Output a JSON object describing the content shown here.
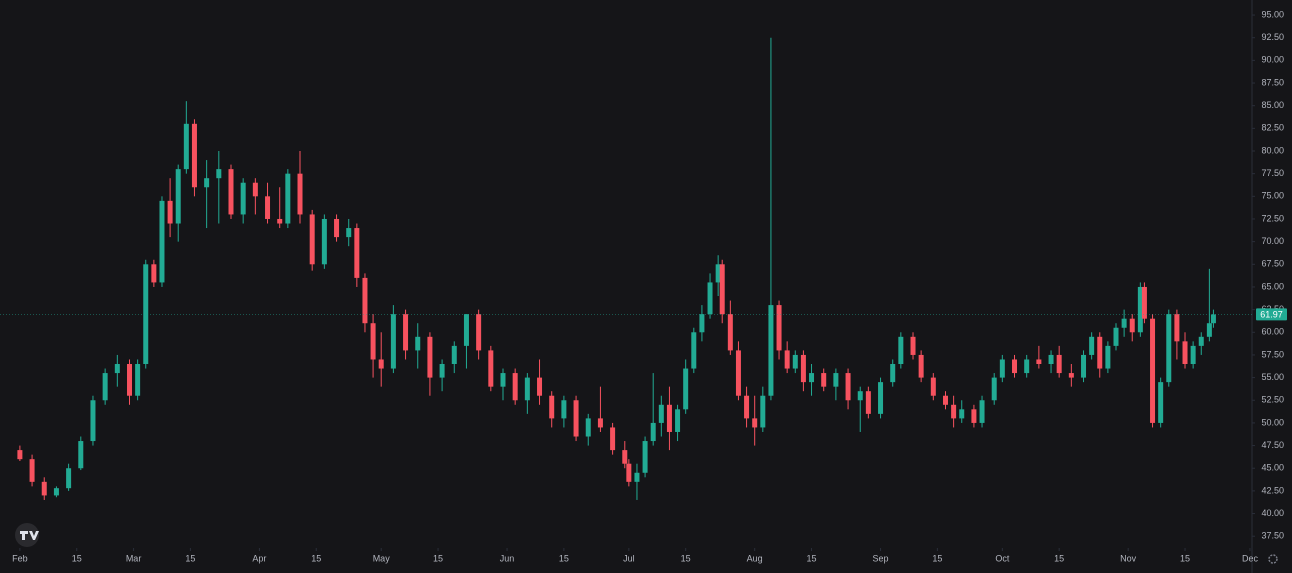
{
  "chart_data": {
    "type": "candlestick",
    "x": [
      0,
      3,
      6,
      9,
      12,
      15,
      18,
      21,
      24,
      27,
      29,
      31,
      33,
      35,
      37,
      39,
      41,
      43,
      46,
      49,
      52,
      55,
      58,
      61,
      64,
      66,
      69,
      72,
      75,
      78,
      81,
      83,
      85,
      87,
      89,
      92,
      95,
      98,
      101,
      104,
      107,
      110,
      113,
      116,
      119,
      122,
      125,
      128,
      131,
      134,
      137,
      140,
      143,
      146,
      149,
      150,
      152,
      154,
      156,
      158,
      160,
      162,
      164,
      166,
      168,
      170,
      172,
      173,
      175,
      177,
      179,
      181,
      183,
      185,
      187,
      189,
      191,
      193,
      195,
      198,
      201,
      204,
      207,
      209,
      212,
      215,
      217,
      220,
      222,
      225,
      228,
      230,
      232,
      235,
      237,
      240,
      242,
      245,
      248,
      251,
      254,
      256,
      259,
      262,
      264,
      266,
      268,
      270,
      272,
      274,
      276,
      277,
      279,
      281,
      283,
      285,
      287,
      289,
      291,
      293,
      294
    ],
    "open": [
      47,
      46,
      43.5,
      42,
      42.8,
      45,
      48,
      52.5,
      55.5,
      56.5,
      53,
      56.5,
      67.5,
      65.5,
      74.5,
      72,
      78,
      83,
      76,
      77,
      78,
      73,
      76.5,
      75,
      72.5,
      72,
      77.5,
      73,
      67.5,
      72.5,
      70.5,
      71.5,
      66,
      61,
      57,
      56,
      62,
      58,
      59.5,
      55,
      56.5,
      58.5,
      62,
      58,
      54,
      55.5,
      52.5,
      55,
      53,
      50.5,
      52.5,
      48.5,
      50.5,
      49.5,
      47,
      45.5,
      43.5,
      44.5,
      48,
      50,
      52,
      49,
      51.5,
      56,
      60,
      62,
      65.5,
      67.5,
      62,
      58,
      53,
      50.5,
      49.5,
      53,
      63,
      58,
      56,
      57.5,
      54.5,
      55.5,
      54,
      55.5,
      52.5,
      53.5,
      51,
      54.5,
      56.5,
      59.5,
      57.5,
      55,
      53,
      52,
      50.5,
      51.5,
      50,
      52.5,
      55,
      57,
      55.5,
      57,
      56.5,
      57.5,
      55.5,
      55,
      57.5,
      59.5,
      56,
      58.5,
      60.5,
      61.5,
      60,
      65,
      61.5,
      50,
      54.5,
      62,
      59,
      56.5,
      58.5,
      59.5,
      61
    ],
    "high": [
      47.5,
      46.5,
      44,
      43,
      45.5,
      48.5,
      53,
      56,
      57.5,
      57,
      57,
      68,
      68,
      75,
      77,
      78.5,
      85.5,
      83.5,
      79,
      80,
      78.5,
      77,
      77,
      76.5,
      76,
      78,
      80,
      73.5,
      73,
      73,
      72.5,
      72,
      66.5,
      62,
      60,
      63,
      62.5,
      61,
      60,
      57,
      59,
      62,
      62.5,
      58.5,
      56,
      56,
      55.5,
      57,
      53.5,
      53,
      53,
      51,
      54,
      50,
      48,
      46,
      45.5,
      48.5,
      55.5,
      53,
      54,
      52,
      57,
      60.5,
      63,
      66.5,
      68.5,
      68,
      63.5,
      59,
      54,
      53,
      54,
      92.5,
      63.5,
      59,
      58,
      58,
      56.5,
      56,
      56,
      56,
      54,
      54,
      55,
      57,
      60,
      60,
      58,
      55.5,
      53.5,
      53,
      52.5,
      52,
      53,
      55.5,
      57.5,
      57.5,
      57.5,
      58.5,
      58,
      58.5,
      56.5,
      58,
      60,
      60,
      59,
      61,
      62.5,
      62,
      65.5,
      65.5,
      62,
      55,
      62.5,
      62.5,
      60,
      59,
      60,
      67,
      62.5
    ],
    "low": [
      45.8,
      43,
      41.5,
      41.8,
      42.5,
      44.8,
      47.5,
      52,
      54,
      52,
      52.5,
      56,
      65,
      65,
      70.5,
      70,
      77.5,
      75,
      71.5,
      72,
      72.5,
      72,
      73,
      72,
      71.5,
      71.5,
      72,
      66.8,
      67,
      70,
      69.5,
      65,
      60,
      55,
      54,
      55.5,
      57,
      56,
      53,
      53.5,
      55.5,
      56,
      57,
      53.5,
      52.5,
      52,
      51,
      52,
      49.5,
      49.5,
      48,
      47.5,
      49,
      46.5,
      45,
      43,
      41.5,
      44,
      47.5,
      48.5,
      47,
      48,
      51,
      55.5,
      59,
      61.5,
      64,
      61,
      57.5,
      52.5,
      49.5,
      47.5,
      49,
      52.5,
      57,
      55.5,
      55.5,
      53.5,
      53,
      53.5,
      52.5,
      51.5,
      49,
      50.5,
      50.5,
      54,
      56,
      57,
      54.5,
      52.5,
      51.5,
      49.5,
      50,
      49.5,
      49.5,
      52,
      54.5,
      55,
      55,
      56,
      55.5,
      55,
      54,
      54.5,
      57,
      55,
      55.5,
      58,
      59.5,
      59,
      59.5,
      61,
      49.5,
      49.5,
      54,
      57,
      56,
      56,
      57.5,
      59,
      60.5
    ],
    "close": [
      46,
      43.5,
      42,
      42.8,
      45,
      48,
      52.5,
      55.5,
      56.5,
      53,
      56.5,
      67.5,
      65.5,
      74.5,
      72,
      78,
      83,
      76,
      77,
      78,
      73,
      76.5,
      75,
      72.5,
      72,
      77.5,
      73,
      67.5,
      72.5,
      70.5,
      71.5,
      66,
      61,
      57,
      56,
      62,
      58,
      59.5,
      55,
      56.5,
      58.5,
      62,
      58,
      54,
      55.5,
      52.5,
      55,
      53,
      50.5,
      52.5,
      48.5,
      50.5,
      49.5,
      47,
      45.5,
      43.5,
      44.5,
      48,
      50,
      52,
      49,
      51.5,
      56,
      60,
      62,
      65.5,
      67.5,
      62,
      58,
      53,
      50.5,
      49.5,
      53,
      63,
      58,
      56,
      57.5,
      54.5,
      55.5,
      54,
      55.5,
      52.5,
      53.5,
      51,
      54.5,
      56.5,
      59.5,
      57.5,
      55,
      53,
      52,
      50.5,
      51.5,
      50,
      52.5,
      55,
      57,
      55.5,
      57,
      56.5,
      57.5,
      55.5,
      55,
      57.5,
      59.5,
      56,
      58.5,
      60.5,
      61.5,
      60,
      65,
      61.5,
      50,
      54.5,
      62,
      59,
      56.5,
      58.5,
      59.5,
      61,
      61.97
    ],
    "up_color": "#22ab94",
    "down_color": "#f7525f",
    "last_price": 61.97,
    "xlim": [
      -4.9,
      303.5
    ],
    "xticks": [
      {
        "value": 0,
        "label": "Feb"
      },
      {
        "value": 14,
        "label": "15"
      },
      {
        "value": 28,
        "label": "Mar"
      },
      {
        "value": 42,
        "label": "15"
      },
      {
        "value": 59,
        "label": "Apr"
      },
      {
        "value": 73,
        "label": "15"
      },
      {
        "value": 89,
        "label": "May"
      },
      {
        "value": 103,
        "label": "15"
      },
      {
        "value": 120,
        "label": "Jun"
      },
      {
        "value": 134,
        "label": "15"
      },
      {
        "value": 150,
        "label": "Jul"
      },
      {
        "value": 164,
        "label": "15"
      },
      {
        "value": 181,
        "label": "Aug"
      },
      {
        "value": 195,
        "label": "15"
      },
      {
        "value": 212,
        "label": "Sep"
      },
      {
        "value": 226,
        "label": "15"
      },
      {
        "value": 242,
        "label": "Oct"
      },
      {
        "value": 256,
        "label": "15"
      },
      {
        "value": 273,
        "label": "Nov"
      },
      {
        "value": 287,
        "label": "15"
      },
      {
        "value": 303,
        "label": "Dec"
      }
    ],
    "ylim": [
      36.2,
      96.66
    ],
    "yticks": [
      {
        "value": 37.5,
        "label": "37.50"
      },
      {
        "value": 40,
        "label": "40.00"
      },
      {
        "value": 42.5,
        "label": "42.50"
      },
      {
        "value": 45,
        "label": "45.00"
      },
      {
        "value": 47.5,
        "label": "47.50"
      },
      {
        "value": 50,
        "label": "50.00"
      },
      {
        "value": 52.5,
        "label": "52.50"
      },
      {
        "value": 55,
        "label": "55.00"
      },
      {
        "value": 57.5,
        "label": "57.50"
      },
      {
        "value": 60,
        "label": "60.00"
      },
      {
        "value": 62.5,
        "label": "62.50"
      },
      {
        "value": 65,
        "label": "65.00"
      },
      {
        "value": 67.5,
        "label": "67.50"
      },
      {
        "value": 70,
        "label": "70.00"
      },
      {
        "value": 72.5,
        "label": "72.50"
      },
      {
        "value": 75,
        "label": "75.00"
      },
      {
        "value": 77.5,
        "label": "77.50"
      },
      {
        "value": 80,
        "label": "80.00"
      },
      {
        "value": 82.5,
        "label": "82.50"
      },
      {
        "value": 85,
        "label": "85.00"
      },
      {
        "value": 87.5,
        "label": "87.50"
      },
      {
        "value": 90,
        "label": "90.00"
      },
      {
        "value": 92.5,
        "label": "92.50"
      },
      {
        "value": 95,
        "label": "95.00"
      }
    ]
  }
}
